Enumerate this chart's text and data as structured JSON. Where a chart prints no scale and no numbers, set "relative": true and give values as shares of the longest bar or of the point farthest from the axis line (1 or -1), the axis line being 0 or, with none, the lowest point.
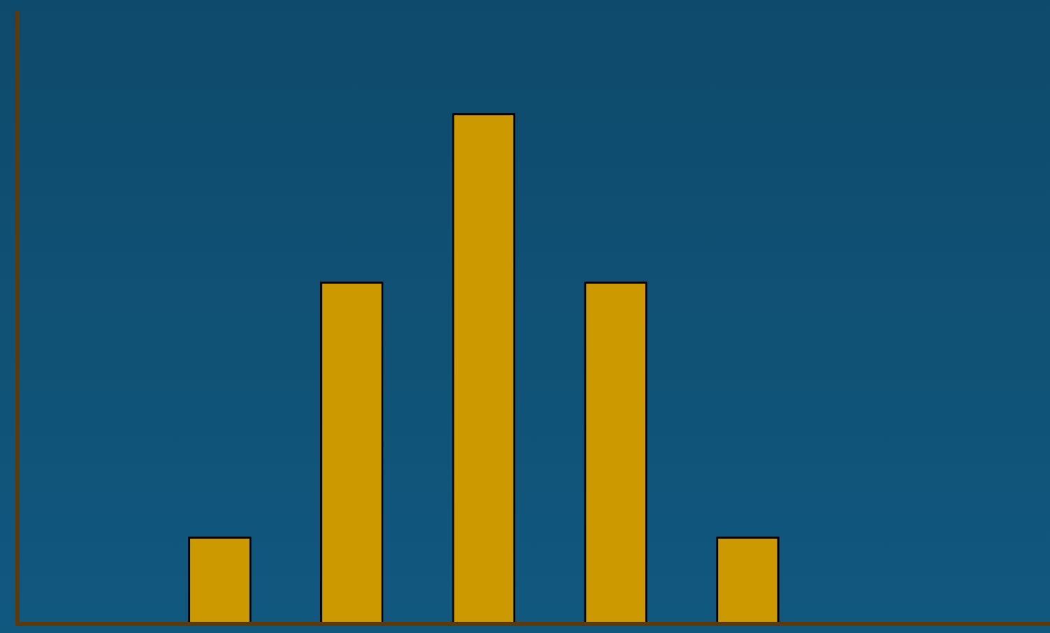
{
  "chart_data": {
    "type": "bar",
    "relative": true,
    "categories": [
      null,
      null,
      null,
      null,
      null
    ],
    "values": [
      0.17,
      0.67,
      1,
      0.67,
      0.17
    ],
    "color": "#cc9900",
    "grid": false,
    "legend": false
  }
}
